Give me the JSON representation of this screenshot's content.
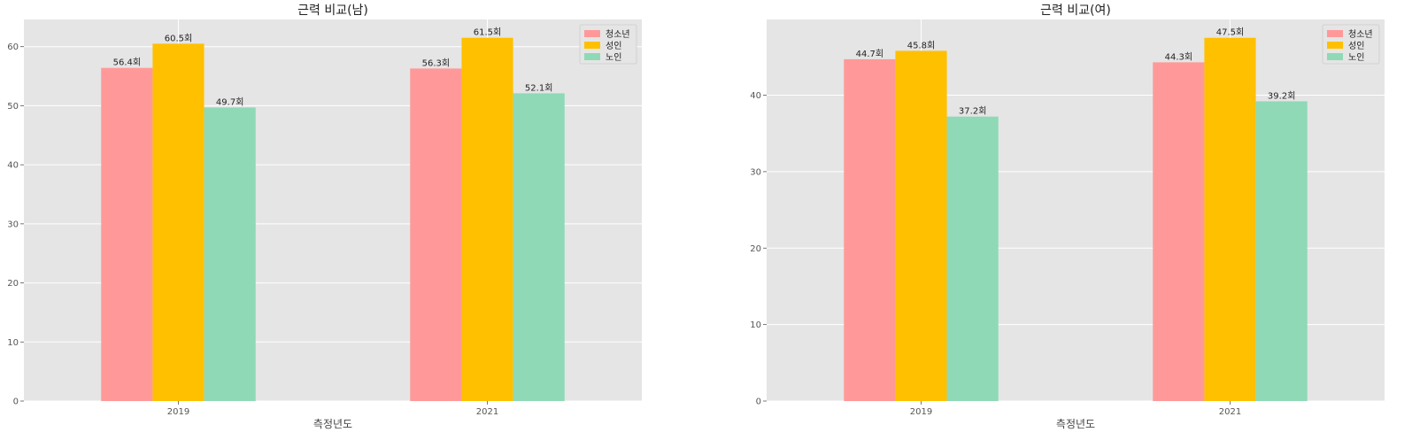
{
  "chart_data": [
    {
      "type": "bar",
      "title": "근력 비교(남)",
      "xlabel": "측정년도",
      "ylabel": "",
      "categories": [
        "2019",
        "2021"
      ],
      "series": [
        {
          "name": "청소년",
          "color": "#ff9999",
          "values": [
            56.4,
            56.3
          ],
          "labels": [
            "56.4회",
            "56.3회"
          ]
        },
        {
          "name": "성인",
          "color": "#ffc000",
          "values": [
            60.5,
            61.5
          ],
          "labels": [
            "60.5회",
            "61.5회"
          ]
        },
        {
          "name": "노인",
          "color": "#8fd9b6",
          "values": [
            49.7,
            52.1
          ],
          "labels": [
            "49.7회",
            "52.1회"
          ]
        }
      ],
      "ylim": [
        0,
        64.6
      ],
      "yticks": [
        0,
        10,
        20,
        30,
        40,
        50,
        60
      ],
      "grid": true,
      "legend": "top-right"
    },
    {
      "type": "bar",
      "title": "근력 비교(여)",
      "xlabel": "측정년도",
      "ylabel": "",
      "categories": [
        "2019",
        "2021"
      ],
      "series": [
        {
          "name": "청소년",
          "color": "#ff9999",
          "values": [
            44.7,
            44.3
          ],
          "labels": [
            "44.7회",
            "44.3회"
          ]
        },
        {
          "name": "성인",
          "color": "#ffc000",
          "values": [
            45.8,
            47.5
          ],
          "labels": [
            "45.8회",
            "47.5회"
          ]
        },
        {
          "name": "노인",
          "color": "#8fd9b6",
          "values": [
            37.2,
            39.2
          ],
          "labels": [
            "37.2회",
            "39.2회"
          ]
        }
      ],
      "ylim": [
        0,
        49.9
      ],
      "yticks": [
        0,
        10,
        20,
        30,
        40
      ],
      "grid": true,
      "legend": "top-right"
    }
  ]
}
